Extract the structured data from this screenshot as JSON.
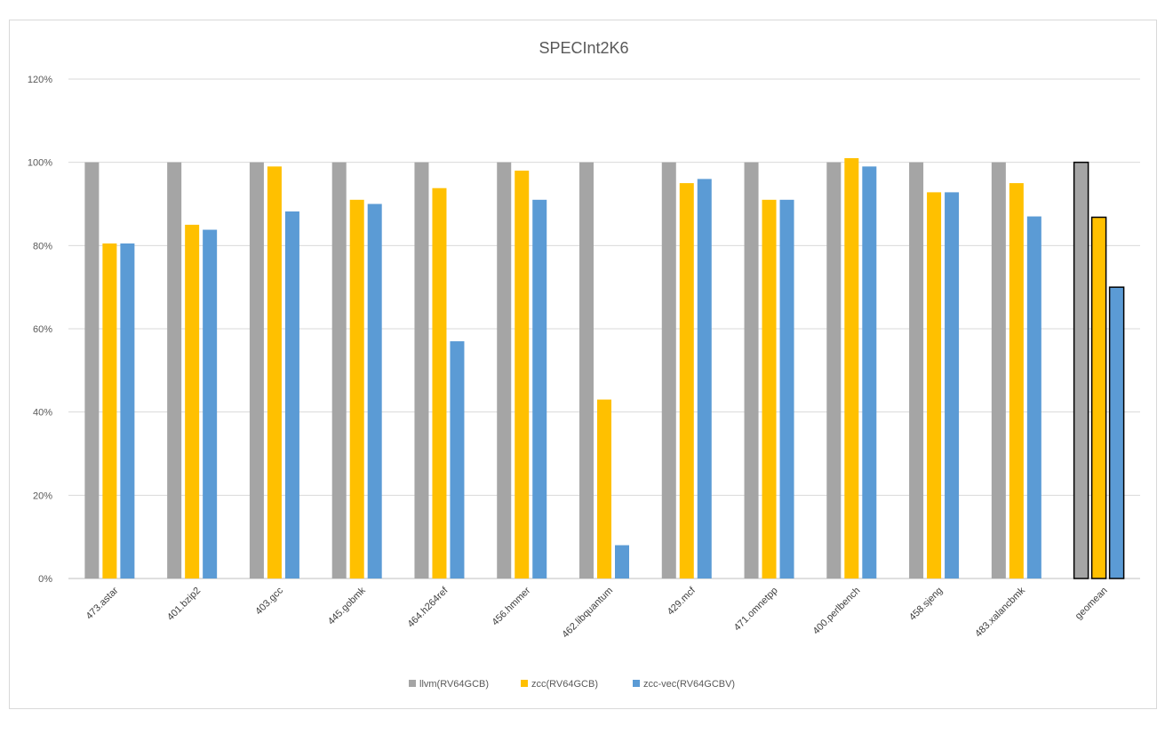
{
  "chart_data": {
    "type": "bar",
    "title": "SPECInt2K6",
    "xlabel": "",
    "ylabel": "",
    "ylim": [
      0,
      120
    ],
    "yticks": [
      "0%",
      "20%",
      "40%",
      "60%",
      "80%",
      "100%",
      "120%"
    ],
    "grid": true,
    "legend_position": "bottom",
    "categories": [
      "473.astar",
      "401.bzip2",
      "403.gcc",
      "445.gobmk",
      "464.h264ref",
      "456.hmmer",
      "462.libquantum",
      "429.mcf",
      "471.omnetpp",
      "400.perlbench",
      "458.sjeng",
      "483.xalancbmk",
      "geomean"
    ],
    "series": [
      {
        "name": "llvm(RV64GCB)",
        "color": "#a5a5a5",
        "values": [
          100,
          100,
          100,
          100,
          100,
          100,
          100,
          100,
          100,
          100,
          100,
          100,
          100
        ]
      },
      {
        "name": "zcc(RV64GCB)",
        "color": "#ffc000",
        "values": [
          80.5,
          85,
          99,
          91,
          93.8,
          98,
          43,
          95,
          91,
          101,
          92.8,
          95,
          86.8
        ]
      },
      {
        "name": "zcc-vec(RV64GCBV)",
        "color": "#5b9bd5",
        "values": [
          80.5,
          83.8,
          88.2,
          90,
          57,
          91,
          8,
          96,
          91,
          99,
          92.8,
          87,
          70
        ]
      }
    ],
    "highlight_category": "geomean",
    "highlight_border_color": "#000000"
  }
}
